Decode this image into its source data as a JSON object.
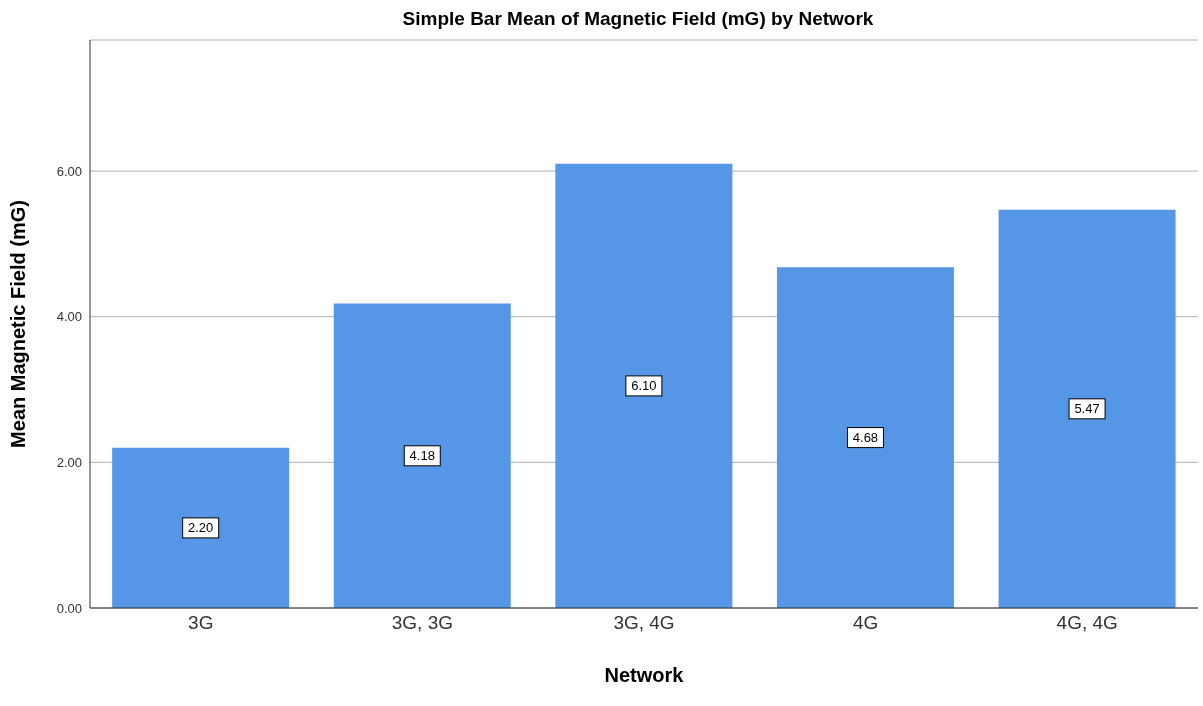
{
  "chart_data": {
    "type": "bar",
    "title": "Simple Bar Mean of Magnetic Field (mG) by Network",
    "xlabel": "Network",
    "ylabel": "Mean Magnetic Field (mG)",
    "categories": [
      "3G",
      "3G, 3G",
      "3G, 4G",
      "4G",
      "4G, 4G"
    ],
    "values": [
      2.2,
      4.18,
      6.1,
      4.68,
      5.47
    ],
    "value_labels": [
      "2.20",
      "4.18",
      "6.10",
      "4.68",
      "5.47"
    ],
    "color": "#5596e6",
    "ylim": [
      0,
      7.8
    ],
    "yticks": [
      {
        "value": 0,
        "label": "0.00"
      },
      {
        "value": 2,
        "label": "2.00"
      },
      {
        "value": 4,
        "label": "4.00"
      },
      {
        "value": 6,
        "label": "6.00"
      }
    ],
    "grid": "y"
  }
}
